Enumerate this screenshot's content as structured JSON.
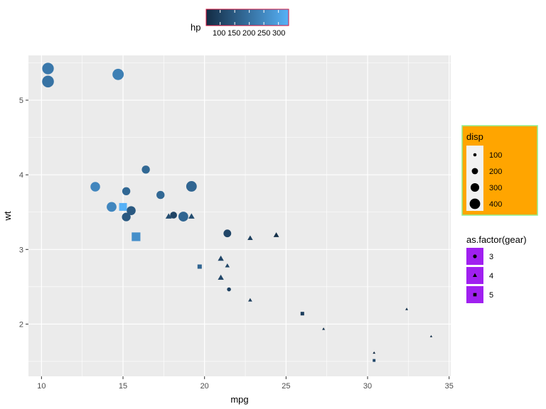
{
  "chart_data": {
    "type": "scatter",
    "xlabel": "mpg",
    "ylabel": "wt",
    "xlim": [
      9.2,
      35.1
    ],
    "ylim": [
      1.3,
      5.6
    ],
    "x_ticks": [
      10,
      15,
      20,
      25,
      30,
      35
    ],
    "y_ticks": [
      2,
      3,
      4,
      5
    ],
    "grid": true,
    "colors": {
      "panel": "#ebebeb",
      "grid": "#ffffff",
      "color_low": "#132b43",
      "color_high": "#56b1f7",
      "size_legend_bg": "#ffa500",
      "size_legend_border": "#90ee90",
      "color_legend_border": "#dc143c",
      "shape_key_bg": "#a020f0"
    },
    "legends": {
      "color": {
        "title": "hp",
        "position": "top",
        "range": [
          52,
          335
        ],
        "tick_values": [
          100,
          150,
          200,
          250,
          300
        ],
        "tick_labels": [
          "100",
          "150",
          "200",
          "250",
          "300"
        ]
      },
      "size": {
        "title": "disp",
        "position": "right",
        "values": [
          100,
          200,
          300,
          400
        ],
        "labels": [
          "100",
          "200",
          "300",
          "400"
        ]
      },
      "shape": {
        "title": "as.factor(gear)",
        "position": "right",
        "values": [
          3,
          4,
          5
        ],
        "labels": [
          "3",
          "4",
          "5"
        ]
      }
    },
    "points": [
      {
        "mpg": 21.0,
        "wt": 2.62,
        "hp": 110,
        "disp": 160.0,
        "gear": 4
      },
      {
        "mpg": 21.0,
        "wt": 2.875,
        "hp": 110,
        "disp": 160.0,
        "gear": 4
      },
      {
        "mpg": 22.8,
        "wt": 2.32,
        "hp": 93,
        "disp": 108.0,
        "gear": 4
      },
      {
        "mpg": 21.4,
        "wt": 3.215,
        "hp": 110,
        "disp": 258.0,
        "gear": 3
      },
      {
        "mpg": 18.7,
        "wt": 3.44,
        "hp": 175,
        "disp": 360.0,
        "gear": 3
      },
      {
        "mpg": 18.1,
        "wt": 3.46,
        "hp": 105,
        "disp": 225.0,
        "gear": 3
      },
      {
        "mpg": 14.3,
        "wt": 3.57,
        "hp": 245,
        "disp": 360.0,
        "gear": 3
      },
      {
        "mpg": 24.4,
        "wt": 3.19,
        "hp": 62,
        "disp": 146.7,
        "gear": 4
      },
      {
        "mpg": 22.8,
        "wt": 3.15,
        "hp": 95,
        "disp": 140.8,
        "gear": 4
      },
      {
        "mpg": 19.2,
        "wt": 3.44,
        "hp": 123,
        "disp": 167.6,
        "gear": 4
      },
      {
        "mpg": 17.8,
        "wt": 3.44,
        "hp": 123,
        "disp": 167.6,
        "gear": 4
      },
      {
        "mpg": 16.4,
        "wt": 4.07,
        "hp": 180,
        "disp": 275.8,
        "gear": 3
      },
      {
        "mpg": 17.3,
        "wt": 3.73,
        "hp": 180,
        "disp": 275.8,
        "gear": 3
      },
      {
        "mpg": 15.2,
        "wt": 3.78,
        "hp": 180,
        "disp": 275.8,
        "gear": 3
      },
      {
        "mpg": 10.4,
        "wt": 5.25,
        "hp": 205,
        "disp": 472.0,
        "gear": 3
      },
      {
        "mpg": 10.4,
        "wt": 5.424,
        "hp": 215,
        "disp": 460.0,
        "gear": 3
      },
      {
        "mpg": 14.7,
        "wt": 5.345,
        "hp": 230,
        "disp": 440.0,
        "gear": 3
      },
      {
        "mpg": 32.4,
        "wt": 2.2,
        "hp": 66,
        "disp": 78.7,
        "gear": 4
      },
      {
        "mpg": 30.4,
        "wt": 1.615,
        "hp": 52,
        "disp": 75.7,
        "gear": 4
      },
      {
        "mpg": 33.9,
        "wt": 1.835,
        "hp": 65,
        "disp": 71.1,
        "gear": 4
      },
      {
        "mpg": 21.5,
        "wt": 2.465,
        "hp": 97,
        "disp": 120.1,
        "gear": 3
      },
      {
        "mpg": 15.5,
        "wt": 3.52,
        "hp": 150,
        "disp": 318.0,
        "gear": 3
      },
      {
        "mpg": 15.2,
        "wt": 3.435,
        "hp": 150,
        "disp": 304.0,
        "gear": 3
      },
      {
        "mpg": 13.3,
        "wt": 3.84,
        "hp": 245,
        "disp": 350.0,
        "gear": 3
      },
      {
        "mpg": 19.2,
        "wt": 3.845,
        "hp": 175,
        "disp": 400.0,
        "gear": 3
      },
      {
        "mpg": 27.3,
        "wt": 1.935,
        "hp": 66,
        "disp": 79.0,
        "gear": 4
      },
      {
        "mpg": 26.0,
        "wt": 2.14,
        "hp": 91,
        "disp": 120.3,
        "gear": 5
      },
      {
        "mpg": 30.4,
        "wt": 1.513,
        "hp": 113,
        "disp": 95.1,
        "gear": 5
      },
      {
        "mpg": 15.8,
        "wt": 3.17,
        "hp": 264,
        "disp": 351.0,
        "gear": 5
      },
      {
        "mpg": 19.7,
        "wt": 2.77,
        "hp": 175,
        "disp": 145.0,
        "gear": 5
      },
      {
        "mpg": 15.0,
        "wt": 3.57,
        "hp": 335,
        "disp": 301.0,
        "gear": 5
      },
      {
        "mpg": 21.4,
        "wt": 2.78,
        "hp": 109,
        "disp": 121.0,
        "gear": 4
      }
    ]
  }
}
